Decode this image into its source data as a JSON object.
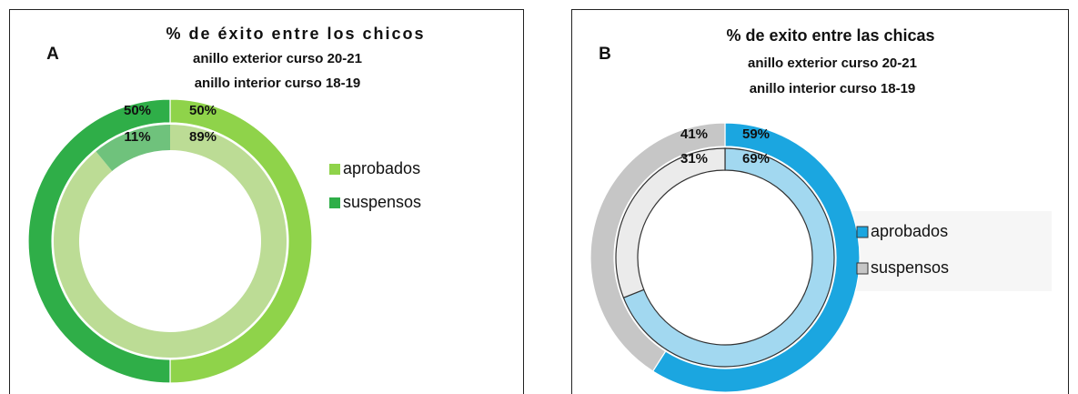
{
  "chart_data": [
    {
      "type": "donut",
      "label": "A",
      "title": "% de éxito entre los chicos",
      "subtitle": [
        "anillo exterior curso 20-21",
        "anillo interior curso 18-19"
      ],
      "categories": [
        "aprobados",
        "suspensos"
      ],
      "rings": [
        {
          "values": [
            50,
            50
          ],
          "value_labels": [
            "50%",
            "50%"
          ],
          "colors": [
            "#8fd34a",
            "#2fae48"
          ]
        },
        {
          "values": [
            89,
            11
          ],
          "value_labels": [
            "89%",
            "11%"
          ],
          "colors": [
            "#bcdc95",
            "#6fc27c"
          ]
        }
      ]
    },
    {
      "type": "donut",
      "label": "B",
      "title": "% de exito entre las chicas",
      "subtitle": [
        "anillo exterior curso 20-21",
        "anillo interior curso 18-19"
      ],
      "categories": [
        "aprobados",
        "suspensos"
      ],
      "rings": [
        {
          "values": [
            59,
            41
          ],
          "value_labels": [
            "59%",
            "41%"
          ],
          "colors": [
            "#1ba6e0",
            "#c6c6c6"
          ]
        },
        {
          "values": [
            69,
            31
          ],
          "value_labels": [
            "69%",
            "31%"
          ],
          "colors": [
            "#a2d8f0",
            "#ebebeb"
          ]
        }
      ]
    }
  ]
}
